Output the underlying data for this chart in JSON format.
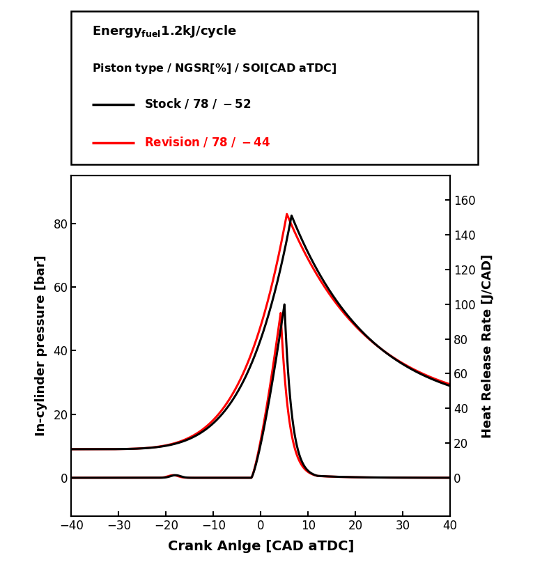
{
  "xlabel": "Crank Anlge [CAD aTDC]",
  "ylabel_left": "In-cylinder pressure [bar]",
  "ylabel_right": "Heat Release Rate [J/CAD]",
  "xlim": [
    -40,
    40
  ],
  "ylim_left": [
    -12,
    95
  ],
  "ylim_right": [
    -22,
    174
  ],
  "xticks": [
    -40,
    -30,
    -20,
    -10,
    0,
    10,
    20,
    30,
    40
  ],
  "yticks_left": [
    0,
    20,
    40,
    60,
    80
  ],
  "yticks_right": [
    0,
    20,
    40,
    60,
    80,
    100,
    120,
    140,
    160
  ],
  "color_stock": "#000000",
  "color_revision": "#ff0000",
  "linewidth": 2.2,
  "background_color": "#ffffff",
  "legend_title1a": "Energy",
  "legend_title1b": "fuel",
  "legend_title1c": " 1.2kJ/cycle",
  "legend_title2": "Piston type / NGSR[%] / SOI[CAD aTDC]",
  "legend_stock_label": "Stock / 78 / -52",
  "legend_revision_label": "Revision / 78 / -44"
}
